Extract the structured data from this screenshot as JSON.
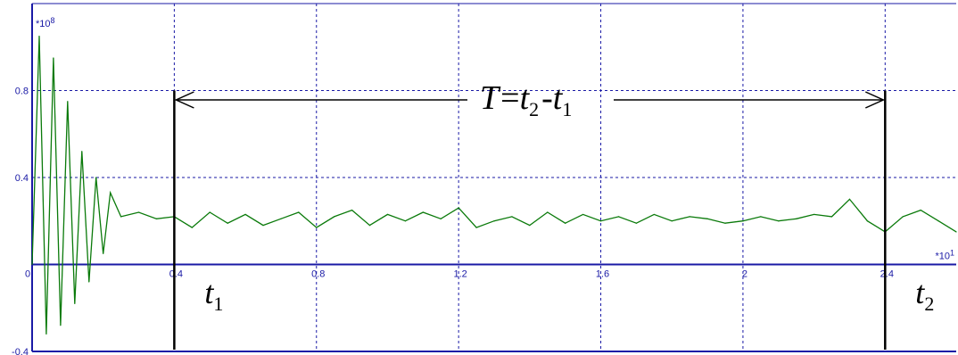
{
  "chart_data": {
    "type": "line",
    "title": "",
    "xlabel": "",
    "ylabel": "",
    "x_scale_label": "*10",
    "x_scale_exp": "1",
    "y_scale_label": "*10",
    "y_scale_exp": "8",
    "xlim": [
      0,
      2.6
    ],
    "ylim": [
      -0.4,
      1.2
    ],
    "x_ticks": [
      "0",
      "0.4",
      "0.8",
      "1.2",
      "1.6",
      "2",
      "2.4"
    ],
    "x_tick_values": [
      0,
      0.4,
      0.8,
      1.2,
      1.6,
      2.0,
      2.4
    ],
    "y_ticks": [
      "0.8",
      "0.4",
      "0",
      "-0.4"
    ],
    "y_tick_values": [
      0.8,
      0.4,
      0,
      -0.4
    ],
    "grid": true,
    "line_color": "#0a7a0a",
    "axis_color": "#1a1aa6",
    "series": [
      {
        "x": [
          0.0,
          0.02,
          0.04,
          0.06,
          0.08,
          0.1,
          0.12,
          0.14,
          0.16,
          0.18,
          0.2,
          0.22,
          0.25,
          0.3,
          0.35,
          0.4,
          0.45,
          0.5,
          0.55,
          0.6,
          0.65,
          0.7,
          0.75,
          0.8,
          0.85,
          0.9,
          0.95,
          1.0,
          1.05,
          1.1,
          1.15,
          1.2,
          1.25,
          1.3,
          1.35,
          1.4,
          1.45,
          1.5,
          1.55,
          1.6,
          1.65,
          1.7,
          1.75,
          1.8,
          1.85,
          1.9,
          1.95,
          2.0,
          2.05,
          2.1,
          2.15,
          2.2,
          2.25,
          2.3,
          2.35,
          2.4,
          2.45,
          2.5,
          2.55,
          2.6
        ],
        "values": [
          0.0,
          1.05,
          -0.32,
          0.95,
          -0.28,
          0.75,
          -0.18,
          0.52,
          -0.08,
          0.4,
          0.05,
          0.33,
          0.22,
          0.24,
          0.21,
          0.22,
          0.17,
          0.24,
          0.19,
          0.23,
          0.18,
          0.21,
          0.24,
          0.17,
          0.22,
          0.25,
          0.18,
          0.23,
          0.2,
          0.24,
          0.21,
          0.26,
          0.17,
          0.2,
          0.22,
          0.18,
          0.24,
          0.19,
          0.23,
          0.2,
          0.22,
          0.19,
          0.23,
          0.2,
          0.22,
          0.21,
          0.19,
          0.2,
          0.22,
          0.2,
          0.21,
          0.23,
          0.22,
          0.3,
          0.2,
          0.15,
          0.22,
          0.25,
          0.2,
          0.15
        ]
      }
    ],
    "annotations": {
      "t1_x": 0.4,
      "t2_x": 2.4,
      "marker_top_y": 0.8,
      "t1_label": "t",
      "t1_sub": "1",
      "t2_label": "t",
      "t2_sub": "2",
      "formula": {
        "T": "T",
        "eq": "=",
        "t_a": "t",
        "sub_a": "2",
        "minus": "-",
        "t_b": "t",
        "sub_b": "1"
      }
    }
  }
}
